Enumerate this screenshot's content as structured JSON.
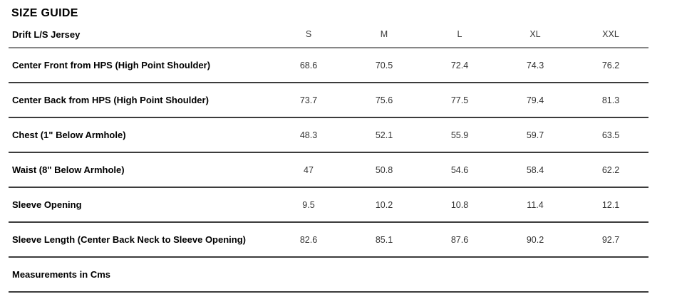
{
  "page": {
    "title": "SIZE GUIDE"
  },
  "table": {
    "product_name": "Drift L/S Jersey",
    "size_headers": [
      "S",
      "M",
      "L",
      "XL",
      "XXL"
    ],
    "rows": [
      {
        "label": "Center Front from HPS (High Point Shoulder)",
        "values": [
          "68.6",
          "70.5",
          "72.4",
          "74.3",
          "76.2"
        ]
      },
      {
        "label": "Center Back from HPS (High Point Shoulder)",
        "values": [
          "73.7",
          "75.6",
          "77.5",
          "79.4",
          "81.3"
        ]
      },
      {
        "label": "Chest (1\" Below Armhole)",
        "values": [
          "48.3",
          "52.1",
          "55.9",
          "59.7",
          "63.5"
        ]
      },
      {
        "label": "Waist (8\" Below Armhole)",
        "values": [
          "47",
          "50.8",
          "54.6",
          "58.4",
          "62.2"
        ]
      },
      {
        "label": "Sleeve Opening",
        "values": [
          "9.5",
          "10.2",
          "10.8",
          "11.4",
          "12.1"
        ]
      },
      {
        "label": "Sleeve Length (Center Back Neck to Sleeve Opening)",
        "values": [
          "82.6",
          "85.1",
          "87.6",
          "90.2",
          "92.7"
        ]
      }
    ],
    "footnote": "Measurements in Cms"
  },
  "colors": {
    "header_rule": "#878787",
    "row_rule": "#3c3c3c",
    "label_text": "#000000",
    "value_text": "#333333",
    "background": "#ffffff"
  }
}
